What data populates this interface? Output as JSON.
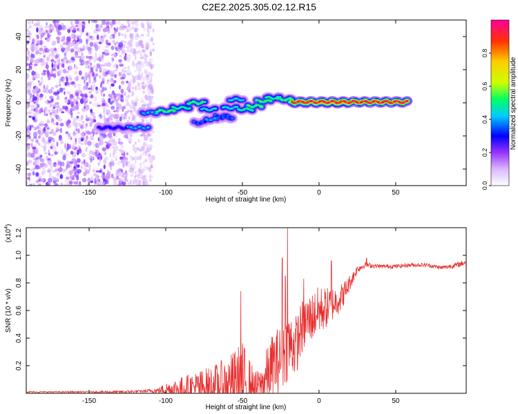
{
  "title": "C2E2.2025.305.02.12.R15",
  "chart_data": [
    {
      "type": "heatmap",
      "xlabel": "Height of straight line (km)",
      "ylabel": "Frequency (Hz)",
      "xlim": [
        -191,
        96
      ],
      "ylim": [
        -50,
        50
      ],
      "x_ticks": [
        -150,
        -100,
        -50,
        0,
        50
      ],
      "y_ticks": [
        -40,
        -20,
        0,
        20,
        40
      ],
      "colorbar": {
        "label": "Normalized spectral amplitude",
        "range": [
          0,
          1
        ],
        "ticks": [
          0.0,
          0.2,
          0.4,
          0.6,
          0.8
        ],
        "tick_labels": [
          "0.0",
          "0.2",
          "0.4",
          "0.6",
          "0.8"
        ],
        "colors": [
          "#ffffff",
          "#d9b8ff",
          "#9933ff",
          "#0000ff",
          "#00ccff",
          "#00ff66",
          "#ccff00",
          "#ffcc00",
          "#ff3300",
          "#ff0099"
        ]
      },
      "noise_region_x": [
        -191,
        -108
      ],
      "ridge": [
        {
          "x": -134,
          "y": -15,
          "w": 20,
          "v": 0.35
        },
        {
          "x": -118,
          "y": -15,
          "w": 14,
          "v": 0.45
        },
        {
          "x": -110,
          "y": -6,
          "w": 12,
          "v": 0.45
        },
        {
          "x": -100,
          "y": -5,
          "w": 12,
          "v": 0.6
        },
        {
          "x": -90,
          "y": -3,
          "w": 12,
          "v": 0.55
        },
        {
          "x": -80,
          "y": 0,
          "w": 12,
          "v": 0.6
        },
        {
          "x": -72,
          "y": -4,
          "w": 10,
          "v": 0.5
        },
        {
          "x": -63,
          "y": -8,
          "w": 10,
          "v": 0.4
        },
        {
          "x": -58,
          "y": -3,
          "w": 10,
          "v": 0.5
        },
        {
          "x": -54,
          "y": 2,
          "w": 10,
          "v": 0.5
        },
        {
          "x": -48,
          "y": -4,
          "w": 10,
          "v": 0.55
        },
        {
          "x": -42,
          "y": -2,
          "w": 10,
          "v": 0.6
        },
        {
          "x": -36,
          "y": 1,
          "w": 10,
          "v": 0.6
        },
        {
          "x": -30,
          "y": 3,
          "w": 10,
          "v": 0.55
        },
        {
          "x": -22,
          "y": 2,
          "w": 10,
          "v": 0.6
        },
        {
          "x": -14,
          "y": 0,
          "w": 10,
          "v": 0.65
        },
        {
          "x": -5,
          "y": 0,
          "w": 10,
          "v": 0.7
        },
        {
          "x": 5,
          "y": 0,
          "w": 10,
          "v": 0.75
        },
        {
          "x": 14,
          "y": 0,
          "w": 10,
          "v": 0.8
        },
        {
          "x": 20,
          "y": 0.5,
          "w": 76,
          "v": 1.0
        }
      ],
      "branch": [
        {
          "x": -78,
          "y": -12,
          "w": 8,
          "v": 0.4
        },
        {
          "x": -70,
          "y": -10,
          "w": 8,
          "v": 0.45
        },
        {
          "x": -60,
          "y": -9,
          "w": 8,
          "v": 0.4
        }
      ]
    },
    {
      "type": "line",
      "xlabel": "Height of straight line (km)",
      "ylabel": "SNR (10 * v/v)",
      "y_multiplier": "(x10",
      "y_multiplier_exp": "4",
      "y_multiplier_close": ")",
      "xlim": [
        -191,
        96
      ],
      "ylim": [
        0,
        1.2
      ],
      "x_ticks": [
        -150,
        -100,
        -50,
        0,
        50
      ],
      "y_ticks": [
        0.2,
        0.4,
        0.6,
        0.8,
        1.0,
        1.2
      ],
      "y_tick_labels": [
        "0.2",
        "0.4",
        "0.6",
        "0.8",
        "1.0",
        "1.2"
      ],
      "color": "#e83030",
      "envelope": {
        "x": [
          -191,
          -150,
          -130,
          -115,
          -105,
          -100,
          -95,
          -85,
          -70,
          -60,
          -55,
          -50,
          -45,
          -42,
          -38,
          -35,
          -30,
          -25,
          -20,
          -15,
          -12,
          -10,
          -5,
          0,
          5,
          10,
          15,
          20,
          25,
          30,
          40,
          50,
          60,
          70,
          80,
          90,
          96
        ],
        "base": [
          0.01,
          0.01,
          0.01,
          0.015,
          0.02,
          0.03,
          0.03,
          0.04,
          0.05,
          0.06,
          0.07,
          0.08,
          0.05,
          0.04,
          0.06,
          0.1,
          0.2,
          0.25,
          0.35,
          0.35,
          0.45,
          0.5,
          0.55,
          0.6,
          0.62,
          0.66,
          0.7,
          0.8,
          0.9,
          0.93,
          0.92,
          0.92,
          0.93,
          0.93,
          0.91,
          0.93,
          0.95
        ],
        "amp": [
          0.005,
          0.005,
          0.01,
          0.01,
          0.02,
          0.05,
          0.07,
          0.1,
          0.15,
          0.2,
          0.25,
          0.3,
          0.2,
          0.12,
          0.12,
          0.2,
          0.25,
          0.25,
          0.25,
          0.22,
          0.2,
          0.2,
          0.18,
          0.18,
          0.15,
          0.12,
          0.1,
          0.06,
          0.03,
          0.02,
          0.015,
          0.015,
          0.015,
          0.015,
          0.015,
          0.02,
          0.02
        ]
      },
      "peaks": [
        {
          "x": -51,
          "y": 0.74
        },
        {
          "x": -20.5,
          "y": 1.2
        },
        {
          "x": -22,
          "y": 0.85
        },
        {
          "x": -24,
          "y": 0.98
        },
        {
          "x": -10,
          "y": 0.83
        },
        {
          "x": 8,
          "y": 0.96
        },
        {
          "x": 31,
          "y": 0.98
        }
      ]
    }
  ]
}
